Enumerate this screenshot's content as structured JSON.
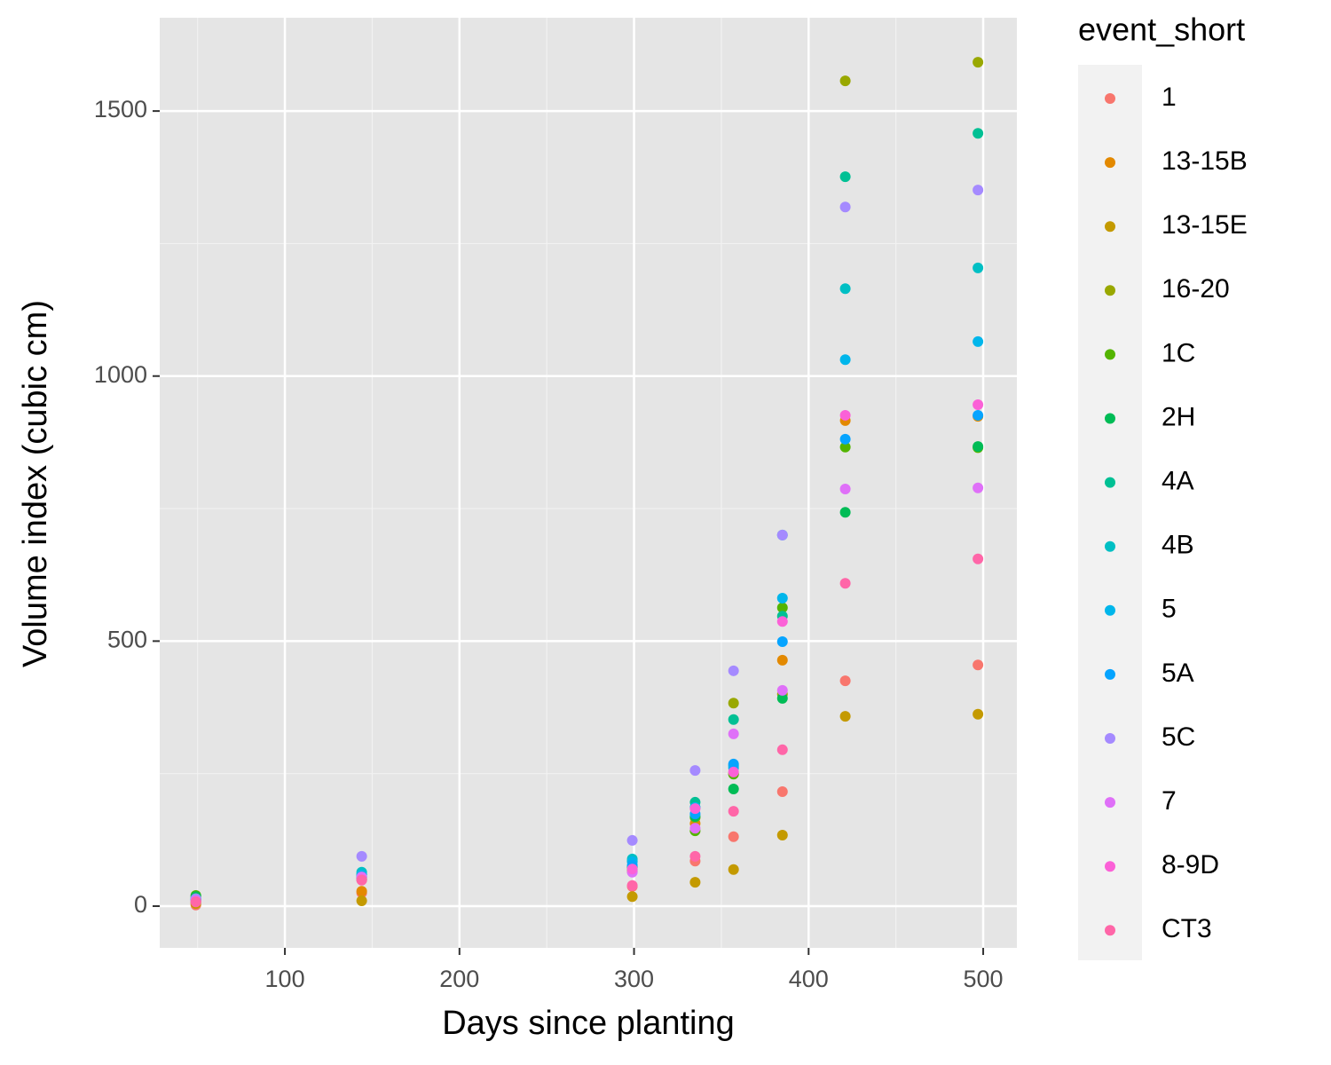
{
  "chart_data": {
    "type": "scatter",
    "x_label": "Days since planting",
    "y_label": "Volume index (cubic cm)",
    "legend_title": "event_short",
    "legend_position": "right",
    "grid": true,
    "xlim": [
      28.3,
      519.3
    ],
    "ylim": [
      -78.7,
      1676
    ],
    "xticks": [
      100,
      200,
      300,
      400,
      500
    ],
    "yticks": [
      0,
      500,
      1000,
      1500
    ],
    "x": [
      49,
      144,
      299,
      335,
      357,
      385,
      421,
      497
    ],
    "series": [
      {
        "name": "1",
        "color": "#F8766D",
        "values": [
          2,
          25,
          37,
          85,
          131,
          216,
          425,
          455
        ]
      },
      {
        "name": "13-15B",
        "color": "#E38900",
        "values": [
          8,
          28,
          65,
          156,
          250,
          464,
          916,
          924
        ]
      },
      {
        "name": "13-15E",
        "color": "#C49A00",
        "values": [
          5,
          10,
          18,
          45,
          69,
          134,
          358,
          362
        ]
      },
      {
        "name": "16-20",
        "color": "#99A800",
        "values": [
          12,
          52,
          72,
          167,
          383,
          400,
          1557,
          1592
        ]
      },
      {
        "name": "1C",
        "color": "#53B400",
        "values": [
          20,
          50,
          69,
          142,
          249,
          563,
          866,
          865
        ]
      },
      {
        "name": "2H",
        "color": "#00BC56",
        "values": [
          18,
          55,
          74,
          169,
          221,
          392,
          743,
          867
        ]
      },
      {
        "name": "4A",
        "color": "#00C094",
        "values": [
          14,
          60,
          85,
          196,
          352,
          547,
          1376,
          1458
        ]
      },
      {
        "name": "4B",
        "color": "#00BFC4",
        "values": [
          13,
          64,
          89,
          186,
          265,
          700,
          1165,
          1204
        ]
      },
      {
        "name": "5",
        "color": "#00B6EB",
        "values": [
          12,
          59,
          84,
          186,
          261,
          581,
          1031,
          1065
        ]
      },
      {
        "name": "5A",
        "color": "#06A4FF",
        "values": [
          11,
          55,
          77,
          174,
          268,
          499,
          881,
          926
        ]
      },
      {
        "name": "5C",
        "color": "#A58AFF",
        "values": [
          14,
          94,
          124,
          256,
          444,
          700,
          1319,
          1351
        ]
      },
      {
        "name": "7",
        "color": "#DF70F8",
        "values": [
          10,
          55,
          64,
          147,
          325,
          407,
          787,
          789
        ]
      },
      {
        "name": "8-9D",
        "color": "#FB61D7",
        "values": [
          9,
          50,
          70,
          184,
          253,
          537,
          926,
          946
        ]
      },
      {
        "name": "CT3",
        "color": "#FF66A8",
        "values": [
          8,
          49,
          39,
          94,
          179,
          295,
          609,
          655
        ]
      }
    ]
  }
}
